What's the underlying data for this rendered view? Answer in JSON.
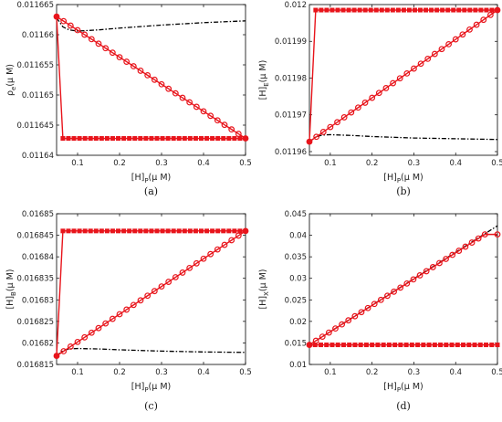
{
  "chart_data": [
    {
      "type": "line",
      "panel": "a",
      "caption": "(a)",
      "xlabel": "[H]",
      "xlabel_sub": "P",
      "xlabel_unit": "(μ M)",
      "ylabel": "ρ",
      "ylabel_sub": "e",
      "ylabel_unit": "(μ M)",
      "xlim": [
        0.05,
        0.5
      ],
      "ylim": [
        0.01164,
        0.011665
      ],
      "xticks": [
        0.1,
        0.2,
        0.3,
        0.4,
        0.5
      ],
      "xtick_labels": [
        "0.1",
        "0.2",
        "0.3",
        "0.4",
        "0.5"
      ],
      "yticks": [
        0.01164,
        0.011645,
        0.01165,
        0.011655,
        0.01166,
        0.011665
      ],
      "ytick_labels": [
        "0.01164",
        "0.011645",
        "0.01165",
        "0.011655",
        "0.01166",
        "0.011665"
      ],
      "series": [
        {
          "style": "dash-dot",
          "color": "#000000",
          "x": [
            0.05,
            0.065,
            0.08,
            0.1,
            0.15,
            0.2,
            0.3,
            0.4,
            0.5
          ],
          "y": [
            0.0116628,
            0.0116613,
            0.0116608,
            0.0116606,
            0.0116608,
            0.0116611,
            0.0116616,
            0.011662,
            0.0116623
          ]
        },
        {
          "style": "circle",
          "color": "#e8141b",
          "start": [
            0.05,
            0.011663
          ],
          "end": [
            0.5,
            0.0116428
          ],
          "points": 28
        },
        {
          "style": "square",
          "color": "#e8141b",
          "start": [
            0.05,
            0.011663
          ],
          "jump": [
            0.065,
            0.0116428
          ],
          "end": [
            0.5,
            0.0116428
          ],
          "points": 34
        }
      ]
    },
    {
      "type": "line",
      "panel": "b",
      "caption": "(b)",
      "xlabel": "[H]",
      "xlabel_sub": "P",
      "xlabel_unit": "(μ M)",
      "ylabel": "[H]",
      "ylabel_sub": "E",
      "ylabel_unit": "(μ M)",
      "xlim": [
        0.05,
        0.5
      ],
      "ylim": [
        0.011959,
        0.012
      ],
      "xticks": [
        0.1,
        0.2,
        0.3,
        0.4,
        0.5
      ],
      "xtick_labels": [
        "0.1",
        "0.2",
        "0.3",
        "0.4",
        "0.5"
      ],
      "yticks": [
        0.01196,
        0.01197,
        0.01198,
        0.01199,
        0.012
      ],
      "ytick_labels": [
        "0.01196",
        "0.01197",
        "0.01198",
        "0.01199",
        "0.012"
      ],
      "series": [
        {
          "style": "dash-dot",
          "color": "#000000",
          "x": [
            0.05,
            0.065,
            0.08,
            0.1,
            0.15,
            0.2,
            0.3,
            0.4,
            0.5
          ],
          "y": [
            0.0119627,
            0.011964,
            0.0119645,
            0.0119646,
            0.0119644,
            0.0119641,
            0.0119637,
            0.0119635,
            0.0119633
          ]
        },
        {
          "style": "circle",
          "color": "#e8141b",
          "start": [
            0.05,
            0.0119627
          ],
          "end": [
            0.5,
            0.0119985
          ],
          "points": 28
        },
        {
          "style": "square",
          "color": "#e8141b",
          "start": [
            0.05,
            0.0119627
          ],
          "jump": [
            0.065,
            0.0119985
          ],
          "end": [
            0.5,
            0.0119985
          ],
          "points": 34
        }
      ]
    },
    {
      "type": "line",
      "panel": "c",
      "caption": "(c)",
      "xlabel": "[H]",
      "xlabel_sub": "P",
      "xlabel_unit": "(μ M)",
      "ylabel": "[H]",
      "ylabel_sub": "B",
      "ylabel_unit": "(μ M)",
      "xlim": [
        0.05,
        0.5
      ],
      "ylim": [
        0.016815,
        0.01685
      ],
      "xticks": [
        0.1,
        0.2,
        0.3,
        0.4,
        0.5
      ],
      "xtick_labels": [
        "0.1",
        "0.2",
        "0.3",
        "0.4",
        "0.5"
      ],
      "yticks": [
        0.016815,
        0.01682,
        0.016825,
        0.01683,
        0.016835,
        0.01684,
        0.016845,
        0.01685
      ],
      "ytick_labels": [
        "0.016815",
        "0.01682",
        "0.016825",
        "0.01683",
        "0.016835",
        "0.01684",
        "0.016845",
        "0.01685"
      ],
      "series": [
        {
          "style": "dash-dot",
          "color": "#000000",
          "x": [
            0.05,
            0.065,
            0.08,
            0.1,
            0.15,
            0.2,
            0.3,
            0.4,
            0.5
          ],
          "y": [
            0.016817,
            0.0168182,
            0.0168186,
            0.0168187,
            0.0168186,
            0.0168184,
            0.0168181,
            0.0168179,
            0.0168178
          ]
        },
        {
          "style": "circle",
          "color": "#e8141b",
          "start": [
            0.05,
            0.016817
          ],
          "end": [
            0.5,
            0.016846
          ],
          "points": 28
        },
        {
          "style": "square",
          "color": "#e8141b",
          "start": [
            0.05,
            0.016817
          ],
          "jump": [
            0.065,
            0.016846
          ],
          "end": [
            0.5,
            0.016846
          ],
          "points": 34
        }
      ]
    },
    {
      "type": "line",
      "panel": "d",
      "caption": "(d)",
      "xlabel": "[H]",
      "xlabel_sub": "P",
      "xlabel_unit": "(μ M)",
      "ylabel": "[H]",
      "ylabel_sub": "X",
      "ylabel_unit": "(μ M)",
      "xlim": [
        0.05,
        0.5
      ],
      "ylim": [
        0.01,
        0.045
      ],
      "xticks": [
        0.1,
        0.2,
        0.3,
        0.4,
        0.5
      ],
      "xtick_labels": [
        "0.1",
        "0.2",
        "0.3",
        "0.4",
        "0.5"
      ],
      "yticks": [
        0.01,
        0.015,
        0.02,
        0.025,
        0.03,
        0.035,
        0.04,
        0.045
      ],
      "ytick_labels": [
        "0.01",
        "0.015",
        "0.02",
        "0.025",
        "0.03",
        "0.035",
        "0.04",
        "0.045"
      ],
      "series": [
        {
          "style": "dash-dot",
          "color": "#000000",
          "x": [
            0.05,
            0.5
          ],
          "y": [
            0.01455,
            0.0422
          ]
        },
        {
          "style": "circle",
          "color": "#e8141b",
          "start": [
            0.05,
            0.01455
          ],
          "end": [
            0.47,
            0.0402
          ],
          "tail": [
            0.5,
            0.0402
          ],
          "points": 28
        },
        {
          "style": "square",
          "color": "#e8141b",
          "start": [
            0.05,
            0.01455
          ],
          "end": [
            0.5,
            0.01455
          ],
          "points": 34
        }
      ]
    }
  ]
}
